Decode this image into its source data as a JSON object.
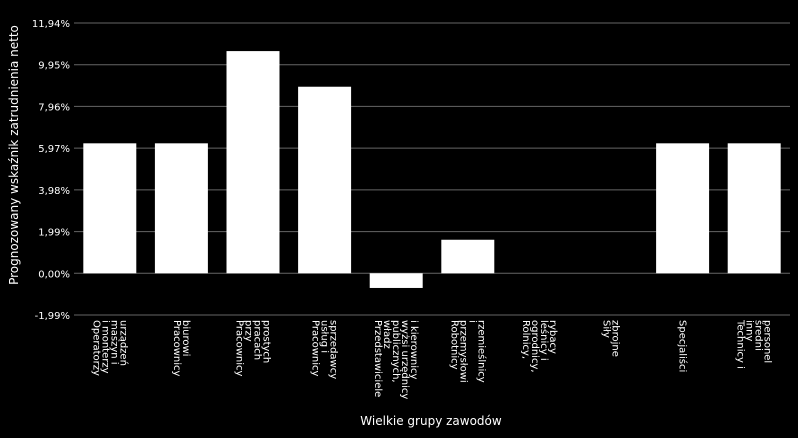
{
  "chart_data": {
    "type": "bar",
    "ylabel": "Prognozowany wskaźnik zatrudnienia netto",
    "xlabel": "Wielkie grupy zawodów",
    "ylim": [
      -1.99,
      11.94
    ],
    "yticks": [
      "-1,99%",
      "0,00%",
      "1,99%",
      "3,98%",
      "5,97%",
      "7,96%",
      "9,95%",
      "11,94%"
    ],
    "grid": true,
    "categories": [
      [
        "Operatorzy",
        "i monterzy",
        "maszyn i",
        "urządzeń"
      ],
      [
        "Pracownicy",
        "biurowi"
      ],
      [
        "Pracownicy",
        "przy",
        "pracach",
        "prostych"
      ],
      [
        "Pracownicy",
        "usług i",
        "sprzedawcy"
      ],
      [
        "Przedstawiciele",
        "władz",
        "publicznych,",
        "wyżsi urzędnicy",
        "i kierownicy"
      ],
      [
        "Robotnicy",
        "przemysłowi",
        "i",
        "rzemieślnicy"
      ],
      [
        "Rolnicy,",
        "ogrodnicy,",
        "leśnicy i",
        "rybacy"
      ],
      [
        "Siły",
        "zbrojne"
      ],
      [
        "Specjaliści"
      ],
      [
        "Technicy i",
        "inny",
        "średni",
        "personel"
      ]
    ],
    "values": [
      6.2,
      6.2,
      10.6,
      8.9,
      -0.7,
      1.6,
      0,
      0,
      6.2,
      6.2
    ],
    "bar_color": "#ffffff",
    "grid_color": "#666666"
  }
}
